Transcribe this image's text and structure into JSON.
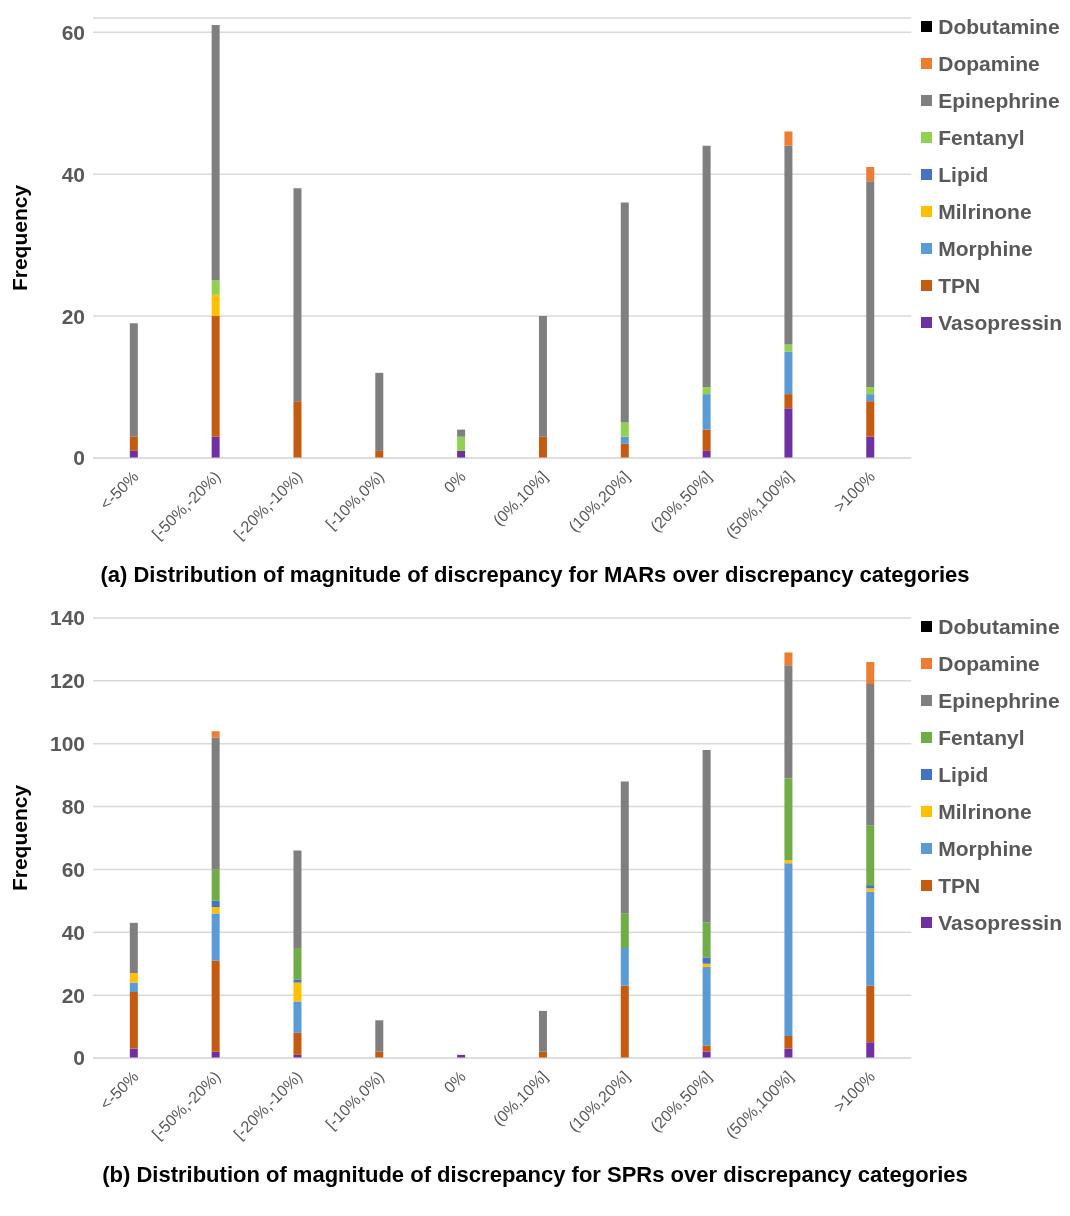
{
  "chart_data": [
    {
      "type": "bar",
      "title": "(a) Distribution of magnitude of discrepancy for MARs over discrepancy categories",
      "ylabel": "Frequency",
      "categories": [
        "<-50%",
        "[-50%,-20%)",
        "[-20%,-10%)",
        "[-10%,0%)",
        "0%",
        "(0%,10%]",
        "(10%,20%]",
        "(20%,50%]",
        "(50%,100%]",
        ">100%"
      ],
      "stacked": true,
      "ylim": [
        0,
        62
      ],
      "yticks": [
        0,
        20,
        40,
        60
      ],
      "grid": "y",
      "legend": "right",
      "series": [
        {
          "name": "Vasopressin",
          "color": "#7030a0",
          "values": [
            1,
            3,
            0,
            0,
            1,
            0,
            0,
            1,
            7,
            3
          ]
        },
        {
          "name": "TPN",
          "color": "#c55a11",
          "values": [
            2,
            17,
            8,
            1,
            0,
            3,
            2,
            3,
            2,
            5
          ]
        },
        {
          "name": "Morphine",
          "color": "#5b9bd5",
          "values": [
            0,
            0,
            0,
            0,
            0,
            0,
            1,
            5,
            6,
            1
          ]
        },
        {
          "name": "Milrinone",
          "color": "#ffc000",
          "values": [
            0,
            3,
            0,
            0,
            0,
            0,
            0,
            0,
            0,
            0
          ]
        },
        {
          "name": "Lipid",
          "color": "#4472c4",
          "values": [
            0,
            0,
            0,
            0,
            0,
            0,
            0,
            0,
            0,
            0
          ]
        },
        {
          "name": "Fentanyl",
          "color": "#92d050",
          "values": [
            0,
            2,
            0,
            0,
            2,
            0,
            2,
            1,
            1,
            1
          ]
        },
        {
          "name": "Epinephrine",
          "color": "#7f7f7f",
          "values": [
            16,
            36,
            30,
            11,
            1,
            17,
            31,
            34,
            28,
            29
          ]
        },
        {
          "name": "Dopamine",
          "color": "#ed7d31",
          "values": [
            0,
            0,
            0,
            0,
            0,
            0,
            0,
            0,
            2,
            2
          ]
        },
        {
          "name": "Dobutamine",
          "color": "#000000",
          "values": [
            0,
            0,
            0,
            0,
            0,
            0,
            0,
            0,
            0,
            0
          ]
        }
      ]
    },
    {
      "type": "bar",
      "title": "(b) Distribution of magnitude of discrepancy for SPRs over discrepancy categories",
      "ylabel": "Frequency",
      "categories": [
        "<-50%",
        "[-50%,-20%)",
        "[-20%,-10%)",
        "[-10%,0%)",
        "0%",
        "(0%,10%]",
        "(10%,20%]",
        "(20%,50%]",
        "(50%,100%]",
        ">100%"
      ],
      "stacked": true,
      "ylim": [
        0,
        140
      ],
      "yticks": [
        0,
        20,
        40,
        60,
        80,
        100,
        120,
        140
      ],
      "grid": "y",
      "legend": "right",
      "series": [
        {
          "name": "Vasopressin",
          "color": "#7030a0",
          "values": [
            3,
            2,
            1,
            0,
            1,
            0,
            0,
            2,
            3,
            5
          ]
        },
        {
          "name": "TPN",
          "color": "#c55a11",
          "values": [
            18,
            29,
            7,
            2,
            0,
            2,
            23,
            2,
            4,
            18
          ]
        },
        {
          "name": "Morphine",
          "color": "#5b9bd5",
          "values": [
            3,
            15,
            10,
            0,
            0,
            0,
            12,
            25,
            55,
            30
          ]
        },
        {
          "name": "Milrinone",
          "color": "#ffc000",
          "values": [
            3,
            2,
            6,
            0,
            0,
            0,
            0,
            1,
            1,
            1
          ]
        },
        {
          "name": "Lipid",
          "color": "#4472c4",
          "values": [
            0,
            2,
            1,
            0,
            0,
            0,
            0,
            2,
            0,
            1
          ]
        },
        {
          "name": "Fentanyl",
          "color": "#70ad47",
          "values": [
            0,
            10,
            10,
            0,
            0,
            0,
            11,
            11,
            26,
            19
          ]
        },
        {
          "name": "Epinephrine",
          "color": "#7f7f7f",
          "values": [
            16,
            42,
            31,
            10,
            0,
            13,
            42,
            55,
            36,
            45
          ]
        },
        {
          "name": "Dopamine",
          "color": "#ed7d31",
          "values": [
            0,
            2,
            0,
            0,
            0,
            0,
            0,
            0,
            4,
            7
          ]
        },
        {
          "name": "Dobutamine",
          "color": "#000000",
          "values": [
            0,
            0,
            0,
            0,
            0,
            0,
            0,
            0,
            0,
            0
          ]
        }
      ]
    }
  ]
}
